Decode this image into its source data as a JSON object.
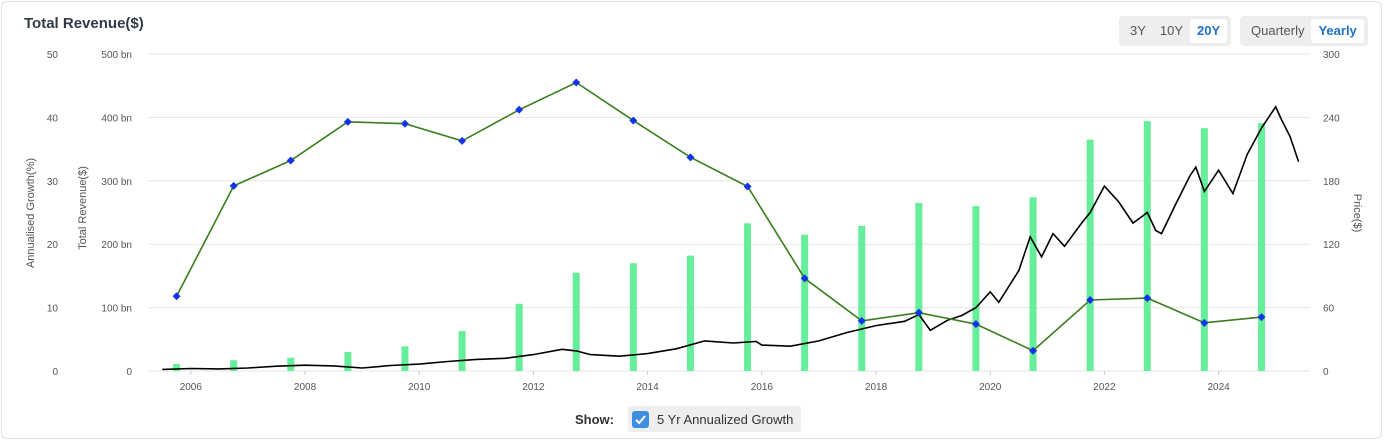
{
  "header": {
    "title": "Total Revenue($)"
  },
  "range_buttons": [
    {
      "label": "3Y",
      "active": false
    },
    {
      "label": "10Y",
      "active": false
    },
    {
      "label": "20Y",
      "active": true
    }
  ],
  "period_buttons": [
    {
      "label": "Quarterly",
      "active": false
    },
    {
      "label": "Yearly",
      "active": true
    }
  ],
  "legend": {
    "show_label": "Show:",
    "growth_label": "5 Yr Annualized Growth",
    "growth_checked": true
  },
  "colors": {
    "bars": "#66ee9a",
    "growth_line": "#3a7d1e",
    "growth_marker": "#1533e6",
    "price_line": "#000000",
    "accent": "#1f72c4"
  },
  "chart_data": {
    "type": "bar",
    "title": "Total Revenue($)",
    "x_ticks": [
      "2006",
      "2008",
      "2010",
      "2012",
      "2014",
      "2016",
      "2018",
      "2020",
      "2022",
      "2024"
    ],
    "left_axis": {
      "label": "Annualised Growth(%)",
      "ticks": [
        "0",
        "10",
        "20",
        "30",
        "40",
        "50"
      ],
      "ylim": [
        0,
        50
      ]
    },
    "revenue_axis": {
      "label": "Total Revenue($)",
      "ticks": [
        "0",
        "100 bn",
        "200 bn",
        "300 bn",
        "400 bn",
        "500 bn"
      ],
      "ylim": [
        0,
        500
      ]
    },
    "right_axis": {
      "label": "Price($)",
      "ticks": [
        "0",
        "60",
        "120",
        "180",
        "240",
        "300"
      ],
      "ylim": [
        0,
        300
      ]
    },
    "revenue_bn": [
      {
        "x": 2005.75,
        "v": 11
      },
      {
        "x": 2006.75,
        "v": 17
      },
      {
        "x": 2007.75,
        "v": 21
      },
      {
        "x": 2008.75,
        "v": 30
      },
      {
        "x": 2009.75,
        "v": 39
      },
      {
        "x": 2010.75,
        "v": 63
      },
      {
        "x": 2011.75,
        "v": 106
      },
      {
        "x": 2012.75,
        "v": 155
      },
      {
        "x": 2013.75,
        "v": 170
      },
      {
        "x": 2014.75,
        "v": 182
      },
      {
        "x": 2015.75,
        "v": 233
      },
      {
        "x": 2016.75,
        "v": 215
      },
      {
        "x": 2017.75,
        "v": 229
      },
      {
        "x": 2018.75,
        "v": 265
      },
      {
        "x": 2019.75,
        "v": 260
      },
      {
        "x": 2020.75,
        "v": 274
      },
      {
        "x": 2021.75,
        "v": 365
      },
      {
        "x": 2022.75,
        "v": 394
      },
      {
        "x": 2023.75,
        "v": 383
      },
      {
        "x": 2024.75,
        "v": 391
      }
    ],
    "growth_pct": [
      {
        "x": 2005.75,
        "v": 11.8
      },
      {
        "x": 2006.75,
        "v": 29.2
      },
      {
        "x": 2007.75,
        "v": 33.2
      },
      {
        "x": 2008.75,
        "v": 39.3
      },
      {
        "x": 2009.75,
        "v": 39.0
      },
      {
        "x": 2010.75,
        "v": 36.3
      },
      {
        "x": 2011.75,
        "v": 41.2
      },
      {
        "x": 2012.75,
        "v": 45.5
      },
      {
        "x": 2013.75,
        "v": 39.5
      },
      {
        "x": 2014.75,
        "v": 33.7
      },
      {
        "x": 2015.75,
        "v": 29.1
      },
      {
        "x": 2016.75,
        "v": 14.6
      },
      {
        "x": 2017.75,
        "v": 7.9
      },
      {
        "x": 2018.75,
        "v": 9.2
      },
      {
        "x": 2019.75,
        "v": 7.4
      },
      {
        "x": 2020.75,
        "v": 3.2
      },
      {
        "x": 2021.75,
        "v": 11.2
      },
      {
        "x": 2022.75,
        "v": 11.5
      },
      {
        "x": 2023.75,
        "v": 7.6
      },
      {
        "x": 2024.75,
        "v": 8.5
      }
    ],
    "price": [
      [
        2005.5,
        1.5
      ],
      [
        2006.0,
        2.4
      ],
      [
        2006.5,
        2.0
      ],
      [
        2007.0,
        2.8
      ],
      [
        2007.5,
        4.5
      ],
      [
        2008.0,
        5.5
      ],
      [
        2008.5,
        4.8
      ],
      [
        2009.0,
        2.8
      ],
      [
        2009.5,
        5.2
      ],
      [
        2010.0,
        6.5
      ],
      [
        2010.5,
        9.0
      ],
      [
        2011.0,
        11.0
      ],
      [
        2011.5,
        12.0
      ],
      [
        2012.0,
        15.5
      ],
      [
        2012.5,
        20.5
      ],
      [
        2012.75,
        19.0
      ],
      [
        2013.0,
        15.5
      ],
      [
        2013.5,
        14.0
      ],
      [
        2014.0,
        16.5
      ],
      [
        2014.5,
        21.0
      ],
      [
        2015.0,
        28.5
      ],
      [
        2015.5,
        26.5
      ],
      [
        2015.9,
        28.0
      ],
      [
        2016.0,
        24.5
      ],
      [
        2016.5,
        23.5
      ],
      [
        2017.0,
        28.5
      ],
      [
        2017.5,
        36.5
      ],
      [
        2018.0,
        43.0
      ],
      [
        2018.5,
        47.0
      ],
      [
        2018.75,
        53.5
      ],
      [
        2018.95,
        38.5
      ],
      [
        2019.25,
        48.0
      ],
      [
        2019.5,
        52.5
      ],
      [
        2019.75,
        60.0
      ],
      [
        2020.0,
        75.0
      ],
      [
        2020.15,
        65.0
      ],
      [
        2020.5,
        95.0
      ],
      [
        2020.7,
        127.0
      ],
      [
        2020.9,
        108.0
      ],
      [
        2021.1,
        130.0
      ],
      [
        2021.3,
        118.0
      ],
      [
        2021.6,
        140.0
      ],
      [
        2021.75,
        150.0
      ],
      [
        2022.0,
        175.0
      ],
      [
        2022.25,
        160.0
      ],
      [
        2022.5,
        140.0
      ],
      [
        2022.75,
        150.0
      ],
      [
        2022.9,
        133.0
      ],
      [
        2023.0,
        130.0
      ],
      [
        2023.25,
        158.0
      ],
      [
        2023.5,
        185.0
      ],
      [
        2023.6,
        193.0
      ],
      [
        2023.75,
        170.0
      ],
      [
        2024.0,
        190.0
      ],
      [
        2024.25,
        168.0
      ],
      [
        2024.5,
        205.0
      ],
      [
        2024.75,
        230.0
      ],
      [
        2025.0,
        250.0
      ],
      [
        2025.1,
        238.0
      ],
      [
        2025.25,
        222.0
      ],
      [
        2025.4,
        198.0
      ]
    ],
    "grid": true
  }
}
